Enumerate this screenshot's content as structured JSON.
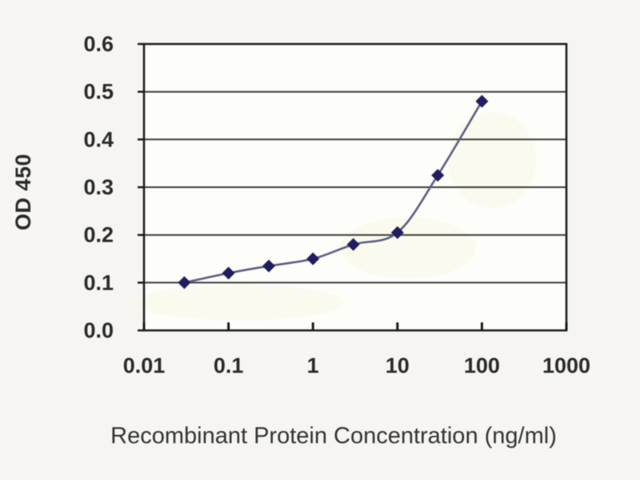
{
  "chart_data": {
    "type": "line",
    "xlabel": "Recombinant Protein Concentration (ng/ml)",
    "ylabel": "OD 450",
    "x_scale": "log",
    "xlim": [
      0.01,
      1000
    ],
    "ylim": [
      0,
      0.6
    ],
    "x_ticks": [
      0.01,
      0.1,
      1,
      10,
      100,
      1000
    ],
    "x_tick_labels": [
      "0.01",
      "0.1",
      "1",
      "10",
      "100",
      "1000"
    ],
    "y_ticks": [
      0,
      0.1,
      0.2,
      0.3,
      0.4,
      0.5,
      0.6
    ],
    "y_tick_labels": [
      "0.0",
      "0.1",
      "0.2",
      "0.3",
      "0.4",
      "0.5",
      "0.6"
    ],
    "grid": "horizontal",
    "legend": "none",
    "series": [
      {
        "marker": "diamond",
        "x": [
          0.03,
          0.1,
          0.3,
          1,
          3,
          10,
          30,
          100
        ],
        "y": [
          0.1,
          0.12,
          0.135,
          0.15,
          0.18,
          0.205,
          0.325,
          0.48
        ]
      }
    ],
    "colors": {
      "line": "#5c5c84",
      "marker": "#1e1e60",
      "grid": "#3b3b3b",
      "axis": "#1a1a1a",
      "tick_text": "#2a2a2a",
      "title_text": "#333333",
      "plot_bg": "#fdfdfa",
      "page_bg": "#f6f5f2"
    }
  }
}
